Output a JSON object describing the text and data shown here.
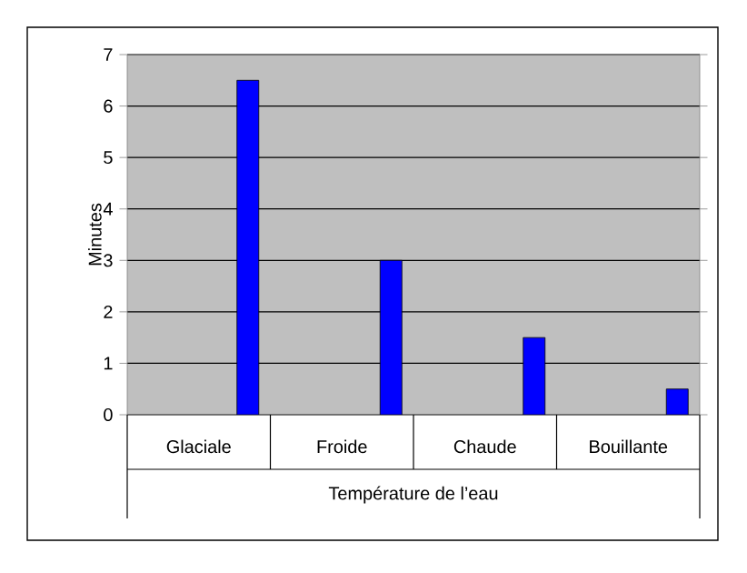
{
  "chart_data": {
    "type": "bar",
    "categories": [
      "Glaciale",
      "Froide",
      "Chaude",
      "Bouillante"
    ],
    "values": [
      6.5,
      3,
      1.5,
      0.5
    ],
    "color": "#0000ff",
    "xlabel": "Température de l’eau",
    "ylabel": "Minutes",
    "ylim": [
      0,
      7
    ],
    "yticks": [
      0,
      1,
      2,
      3,
      4,
      5,
      6,
      7
    ],
    "grid": "y"
  }
}
